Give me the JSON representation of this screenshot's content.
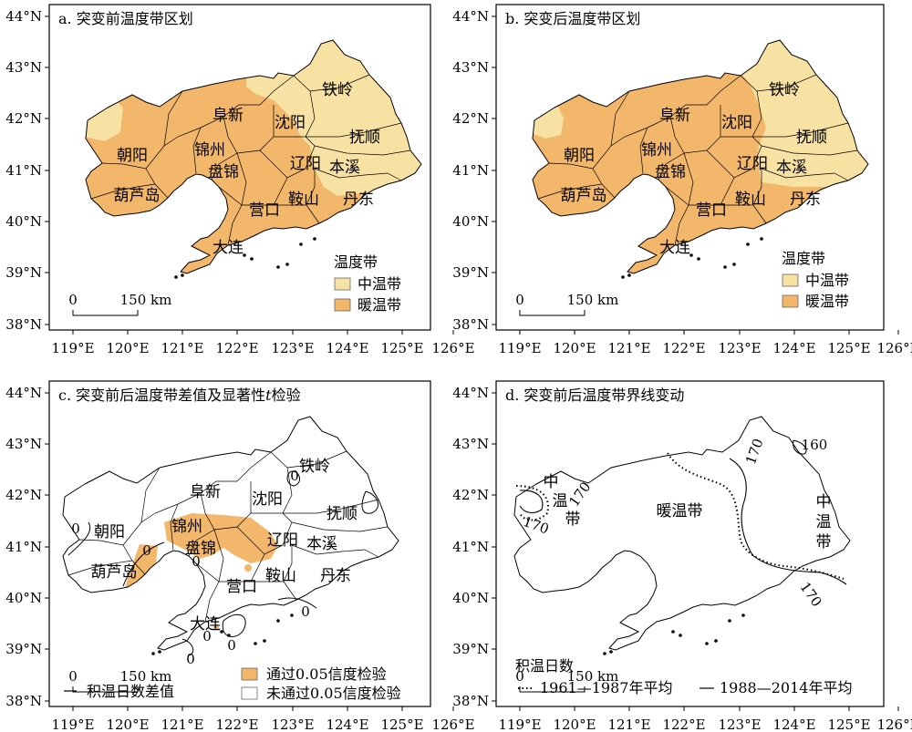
{
  "panels": {
    "a": {
      "title": "a. 突变前温度带区划",
      "legend_title": "温度带",
      "legend_items": [
        "中温带",
        "暖温带"
      ],
      "scale_zero": "0",
      "scale_label": "150 km"
    },
    "b": {
      "title": "b. 突变后温度带区划",
      "legend_title": "温度带",
      "legend_items": [
        "中温带",
        "暖温带"
      ],
      "scale_zero": "0",
      "scale_label": "150 km"
    },
    "c": {
      "title": "c. 突变前后温度带差值及显著性",
      "title_italic": "t",
      "title_end": "检验",
      "legend_line": "积温日数差值",
      "legend_items": [
        "通过0.05信度检验",
        "未通过0.05信度检验"
      ],
      "contour_labels": [
        "0",
        "0",
        "0",
        "0",
        "0",
        "0",
        "0",
        "0"
      ],
      "scale_zero": "0",
      "scale_label": "150 km"
    },
    "d": {
      "title": "d. 突变前后温度带界线变动",
      "zone_warm": "暖温带",
      "zone_mid_right": [
        "中",
        "温",
        "带"
      ],
      "zone_mid_left": [
        "中",
        "温",
        "带"
      ],
      "contour_labels": [
        "170",
        "170",
        "170",
        "160",
        "170"
      ],
      "legend_title": "积温日数",
      "legend_items": [
        "1961—1987年平均",
        "1988—2014年平均"
      ],
      "scale_zero": "0",
      "scale_label": "150 km"
    }
  },
  "cities": [
    "铁岭",
    "阜新",
    "沈阳",
    "抚顺",
    "朝阳",
    "锦州",
    "辽阳",
    "本溪",
    "盘锦",
    "葫芦岛",
    "鞍山",
    "丹东",
    "营口",
    "大连"
  ],
  "x_ticks": [
    "119°E",
    "120°E",
    "121°E",
    "122°E",
    "123°E",
    "124°E",
    "125°E",
    "126°E"
  ],
  "y_ticks": [
    "44°N",
    "43°N",
    "42°N",
    "41°N",
    "40°N",
    "39°N",
    "38°N"
  ],
  "colors": {
    "warm_temperate": "#F3B76B",
    "mid_temperate": "#F7E2A4",
    "significant": "#F3B76B",
    "not_significant": "#ffffff"
  }
}
